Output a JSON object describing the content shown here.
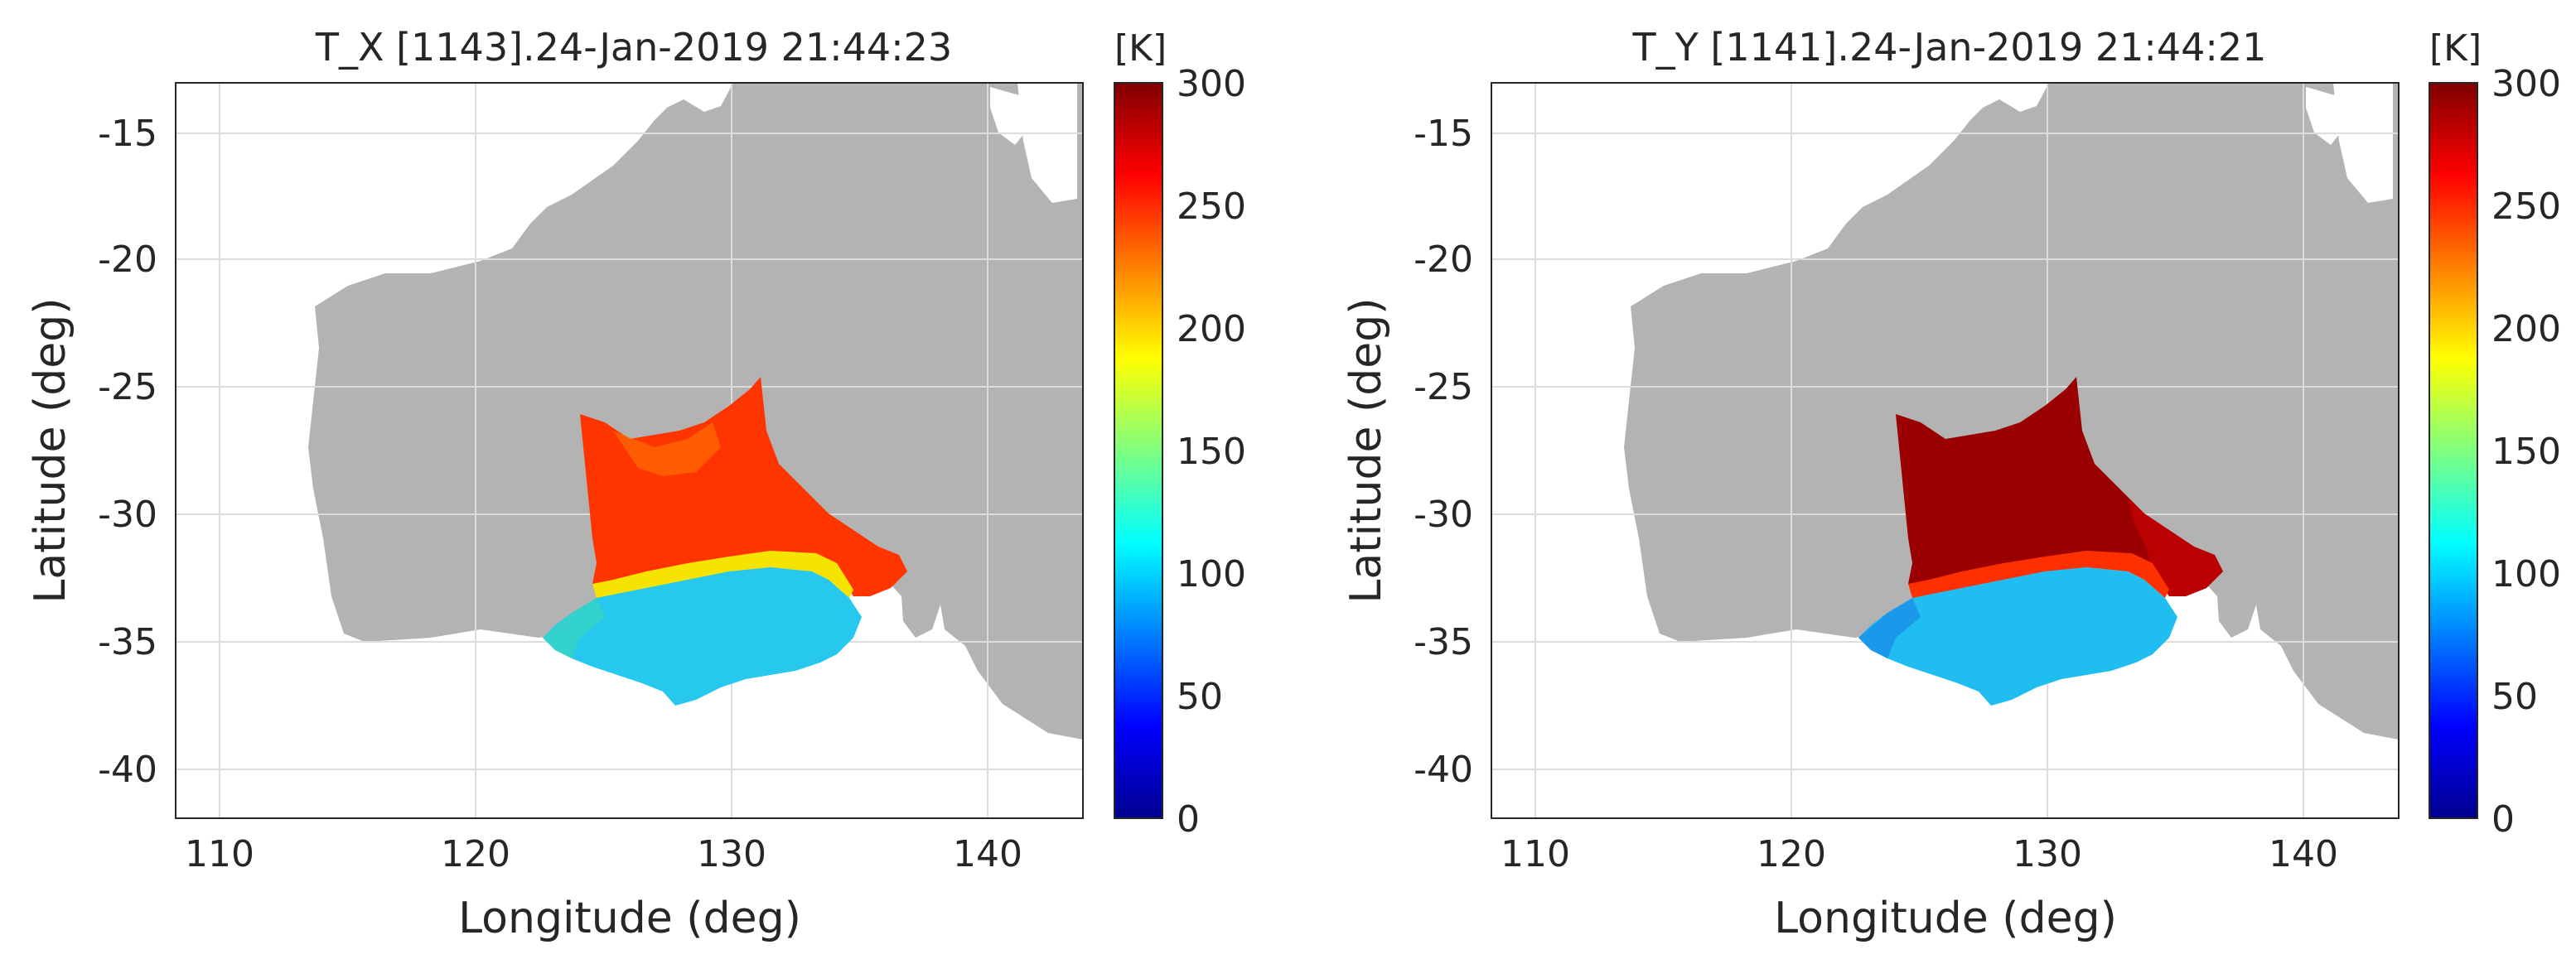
{
  "chart_data": [
    {
      "type": "heatmap",
      "title": "T_X [1143].24-Jan-2019 21:44:23",
      "xlabel": "Longitude (deg)",
      "ylabel": "Latitude (deg)",
      "xlim": [
        108.2,
        143.8
      ],
      "ylim": [
        -41.8,
        -13.2
      ],
      "xticks": [
        "110",
        "120",
        "130",
        "140"
      ],
      "yticks": [
        "-15",
        "-20",
        "-25",
        "-30",
        "-35",
        "-40"
      ],
      "grid": true,
      "land_color": "#b3b3b3",
      "colormap": "jet",
      "colorbar": {
        "unit": "[K]",
        "range": [
          0,
          300
        ],
        "ticks": [
          "300",
          "250",
          "200",
          "150",
          "100",
          "50",
          "0"
        ]
      },
      "region": {
        "north_temperature_K": 255,
        "south_temperature_K": 100,
        "boundary_lat": -32.2
      }
    },
    {
      "type": "heatmap",
      "title": "T_Y [1141].24-Jan-2019 21:44:21",
      "xlabel": "Longitude (deg)",
      "ylabel": "Latitude (deg)",
      "xlim": [
        108.2,
        143.8
      ],
      "ylim": [
        -41.8,
        -13.2
      ],
      "xticks": [
        "110",
        "120",
        "130",
        "140"
      ],
      "yticks": [
        "-15",
        "-20",
        "-25",
        "-30",
        "-35",
        "-40"
      ],
      "grid": true,
      "land_color": "#b3b3b3",
      "colormap": "jet",
      "colorbar": {
        "unit": "[K]",
        "range": [
          0,
          300
        ],
        "ticks": [
          "300",
          "250",
          "200",
          "150",
          "100",
          "50",
          "0"
        ]
      },
      "region": {
        "north_temperature_K": 285,
        "south_temperature_K": 95,
        "boundary_lat": -32.2
      }
    }
  ]
}
